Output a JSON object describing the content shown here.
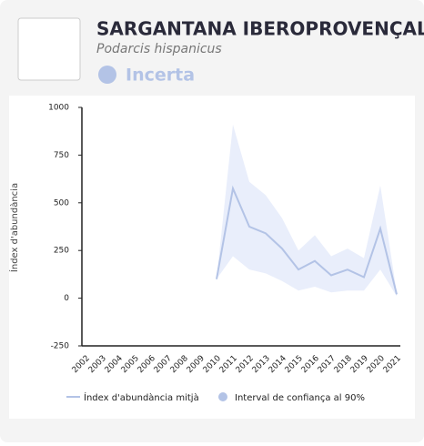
{
  "header": {
    "title": "SARGANTANA IBEROPROVENÇAL",
    "species": "Podarcis hispanicus",
    "status": "Incerta"
  },
  "chart_data": {
    "type": "line",
    "ylabel": "Índex d'abundància",
    "categories": [
      "2002",
      "2003",
      "2004",
      "2005",
      "2006",
      "2007",
      "2008",
      "2009",
      "2010",
      "2011",
      "2012",
      "2013",
      "2014",
      "2015",
      "2016",
      "2017",
      "2018",
      "2019",
      "2020",
      "2021"
    ],
    "series": [
      {
        "name": "Índex d'abundància mitjà",
        "color": "#b3c3e6",
        "values": [
          null,
          null,
          null,
          null,
          null,
          null,
          null,
          null,
          100,
          575,
          375,
          340,
          260,
          150,
          195,
          120,
          150,
          110,
          365,
          20
        ]
      },
      {
        "name": "Interval de confiança al 90%",
        "color": "#e9eefb",
        "values": [
          null,
          null,
          null,
          null,
          null,
          null,
          null,
          null,
          100,
          910,
          610,
          540,
          420,
          250,
          330,
          220,
          260,
          210,
          590,
          30
        ],
        "lower": [
          null,
          null,
          null,
          null,
          null,
          null,
          null,
          null,
          100,
          220,
          150,
          130,
          90,
          40,
          60,
          30,
          40,
          40,
          150,
          10
        ]
      }
    ],
    "ylim": [
      -250,
      1000
    ],
    "yticks": [
      -250,
      0,
      250,
      500,
      750,
      1000
    ],
    "grid": false
  }
}
